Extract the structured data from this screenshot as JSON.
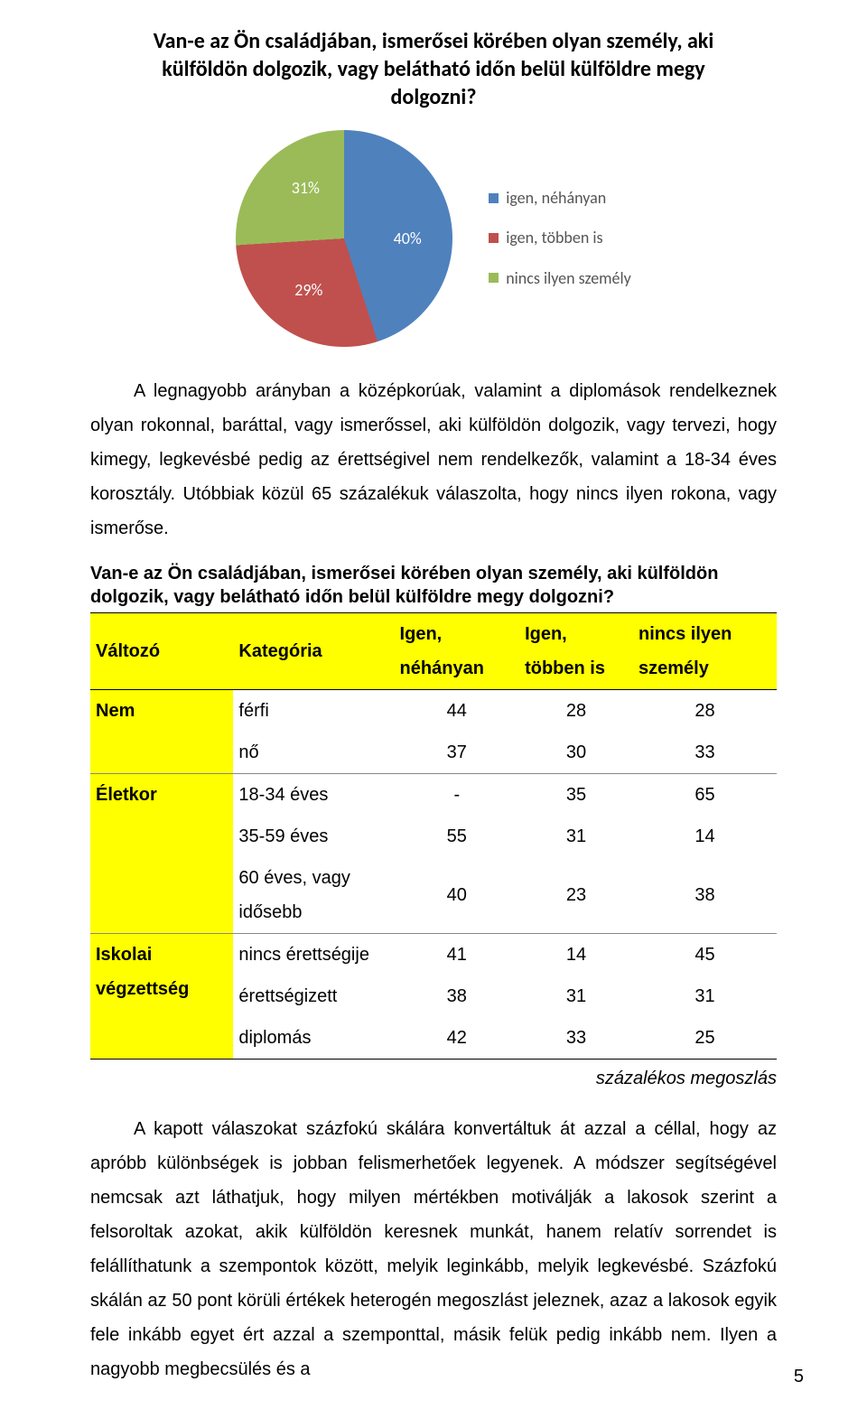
{
  "chart": {
    "title": "Van-e az Ön családjában, ismerősei körében olyan személy, aki külföldön dolgozik, vagy belátható időn belül külföldre megy dolgozni?",
    "type": "pie",
    "slices": [
      {
        "label": "igen, néhányan",
        "value": 40,
        "pct_label": "40%",
        "color": "#4f81bd"
      },
      {
        "label": "igen, többen is",
        "value": 29,
        "pct_label": "29%",
        "color": "#c0504d"
      },
      {
        "label": "nincs ilyen személy",
        "value": 31,
        "pct_label": "31%",
        "color": "#9bbb59"
      }
    ],
    "background_color": "#ffffff",
    "label_color": "#ffffff",
    "label_fontsize": 18,
    "legend_fontsize": 18,
    "legend_color": "#555555",
    "title_fontsize": 24
  },
  "paragraph1": "A legnagyobb arányban a középkorúak, valamint a diplomások rendelkeznek olyan rokonnal, baráttal, vagy ismerőssel, aki külföldön dolgozik, vagy tervezi, hogy kimegy, legkevésbé pedig az érettségivel nem rendelkezők, valamint a 18-34 éves korosztály. Utóbbiak közül 65 százalékuk válaszolta, hogy nincs ilyen rokona, vagy ismerőse.",
  "table": {
    "caption": "Van-e az Ön családjában, ismerősei körében olyan személy, aki külföldön dolgozik, vagy belátható időn belül külföldre megy dolgozni?",
    "columns": [
      "Változó",
      "Kategória",
      "Igen, néhányan",
      "Igen, többen is",
      "nincs ilyen személy"
    ],
    "groups": [
      {
        "var": "Nem",
        "rows": [
          {
            "cat": "férfi",
            "vals": [
              "44",
              "28",
              "28"
            ]
          },
          {
            "cat": "nő",
            "vals": [
              "37",
              "30",
              "33"
            ]
          }
        ]
      },
      {
        "var": "Életkor",
        "rows": [
          {
            "cat": "18-34 éves",
            "vals": [
              "-",
              "35",
              "65"
            ]
          },
          {
            "cat": "35-59 éves",
            "vals": [
              "55",
              "31",
              "14"
            ]
          },
          {
            "cat": "60 éves, vagy idősebb",
            "vals": [
              "40",
              "23",
              "38"
            ]
          }
        ]
      },
      {
        "var": "Iskolai végzettség",
        "rows": [
          {
            "cat": "nincs érettségije",
            "vals": [
              "41",
              "14",
              "45"
            ]
          },
          {
            "cat": "érettségizett",
            "vals": [
              "38",
              "31",
              "31"
            ]
          },
          {
            "cat": "diplomás",
            "vals": [
              "42",
              "33",
              "25"
            ]
          }
        ]
      }
    ],
    "footnote": "százalékos megoszlás",
    "header_bg": "#ffff00",
    "varcell_bg": "#ffff00",
    "border_color": "#000000"
  },
  "paragraph2": "A kapott válaszokat százfokú skálára konvertáltuk át azzal a céllal, hogy az apróbb különbségek is jobban felismerhetőek legyenek. A módszer segítségével nemcsak azt láthatjuk, hogy milyen mértékben motiválják a lakosok szerint a felsoroltak azokat, akik külföldön keresnek munkát, hanem relatív sorrendet is felállíthatunk a szempontok között, melyik leginkább, melyik legkevésbé. Százfokú skálán az 50 pont körüli értékek heterogén megoszlást jeleznek, azaz a lakosok egyik fele inkább egyet ért azzal a szemponttal, másik felük pedig inkább nem. Ilyen a nagyobb megbecsülés és a",
  "page_number": "5"
}
